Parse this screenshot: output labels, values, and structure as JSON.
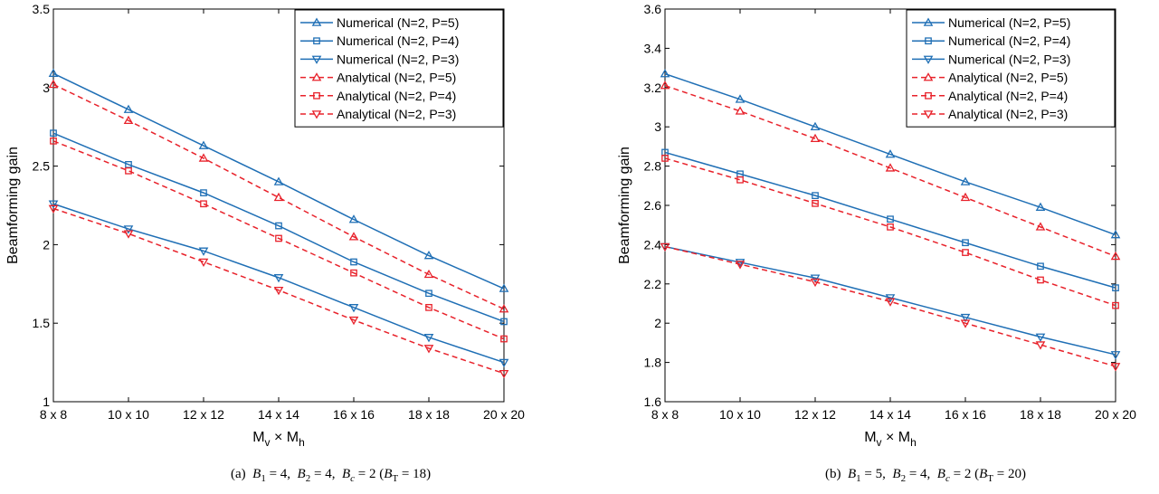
{
  "chart_data": [
    {
      "type": "line",
      "title": "",
      "xlabel": "M_v × M_h",
      "ylabel": "Beamforming gain",
      "categories": [
        "8 x 8",
        "10 x 10",
        "12 x 12",
        "14 x 14",
        "16 x 16",
        "18 x 18",
        "20 x 20"
      ],
      "ylim": [
        1,
        3.5
      ],
      "yticks": [
        "1",
        "1.5",
        "2",
        "2.5",
        "3",
        "3.5"
      ],
      "grid": false,
      "legend_position": "top-right",
      "caption": {
        "label": "(a)",
        "b1": "4",
        "b2": "4",
        "bc": "2",
        "bt": "18"
      },
      "series": [
        {
          "name": "Numerical (N=2, P=5)",
          "style": "solid",
          "marker": "triangle-up",
          "color": "#1f6fb5",
          "values": [
            3.09,
            2.86,
            2.63,
            2.4,
            2.16,
            1.93,
            1.72
          ]
        },
        {
          "name": "Numerical (N=2, P=4)",
          "style": "solid",
          "marker": "square",
          "color": "#1f6fb5",
          "values": [
            2.71,
            2.51,
            2.33,
            2.12,
            1.89,
            1.69,
            1.51
          ]
        },
        {
          "name": "Numerical (N=2, P=3)",
          "style": "solid",
          "marker": "triangle-down",
          "color": "#1f6fb5",
          "values": [
            2.26,
            2.1,
            1.96,
            1.79,
            1.6,
            1.41,
            1.25
          ]
        },
        {
          "name": "Analytical (N=2, P=5)",
          "style": "dashed",
          "marker": "triangle-up",
          "color": "#e8222b",
          "values": [
            3.02,
            2.79,
            2.55,
            2.3,
            2.05,
            1.81,
            1.59
          ]
        },
        {
          "name": "Analytical (N=2, P=4)",
          "style": "dashed",
          "marker": "square",
          "color": "#e8222b",
          "values": [
            2.66,
            2.47,
            2.26,
            2.04,
            1.82,
            1.6,
            1.4
          ]
        },
        {
          "name": "Analytical (N=2, P=3)",
          "style": "dashed",
          "marker": "triangle-down",
          "color": "#e8222b",
          "values": [
            2.23,
            2.07,
            1.89,
            1.71,
            1.52,
            1.34,
            1.18
          ]
        }
      ]
    },
    {
      "type": "line",
      "title": "",
      "xlabel": "M_v × M_h",
      "ylabel": "Beamforming gain",
      "categories": [
        "8 x 8",
        "10 x 10",
        "12 x 12",
        "14 x 14",
        "16 x 16",
        "18 x 18",
        "20 x 20"
      ],
      "ylim": [
        1.6,
        3.6
      ],
      "yticks": [
        "1.6",
        "1.8",
        "2",
        "2.2",
        "2.4",
        "2.6",
        "2.8",
        "3",
        "3.2",
        "3.4",
        "3.6"
      ],
      "grid": false,
      "legend_position": "top-right",
      "caption": {
        "label": "(b)",
        "b1": "5",
        "b2": "4",
        "bc": "2",
        "bt": "20"
      },
      "series": [
        {
          "name": "Numerical (N=2, P=5)",
          "style": "solid",
          "marker": "triangle-up",
          "color": "#1f6fb5",
          "values": [
            3.27,
            3.14,
            3.0,
            2.86,
            2.72,
            2.59,
            2.45
          ]
        },
        {
          "name": "Numerical (N=2, P=4)",
          "style": "solid",
          "marker": "square",
          "color": "#1f6fb5",
          "values": [
            2.87,
            2.76,
            2.65,
            2.53,
            2.41,
            2.29,
            2.18
          ]
        },
        {
          "name": "Numerical (N=2, P=3)",
          "style": "solid",
          "marker": "triangle-down",
          "color": "#1f6fb5",
          "values": [
            2.39,
            2.31,
            2.23,
            2.13,
            2.03,
            1.93,
            1.84
          ]
        },
        {
          "name": "Analytical (N=2, P=5)",
          "style": "dashed",
          "marker": "triangle-up",
          "color": "#e8222b",
          "values": [
            3.21,
            3.08,
            2.94,
            2.79,
            2.64,
            2.49,
            2.34
          ]
        },
        {
          "name": "Analytical (N=2, P=4)",
          "style": "dashed",
          "marker": "square",
          "color": "#e8222b",
          "values": [
            2.84,
            2.73,
            2.61,
            2.49,
            2.36,
            2.22,
            2.09
          ]
        },
        {
          "name": "Analytical (N=2, P=3)",
          "style": "dashed",
          "marker": "triangle-down",
          "color": "#e8222b",
          "values": [
            2.39,
            2.3,
            2.21,
            2.11,
            2.0,
            1.89,
            1.78
          ]
        }
      ]
    }
  ]
}
